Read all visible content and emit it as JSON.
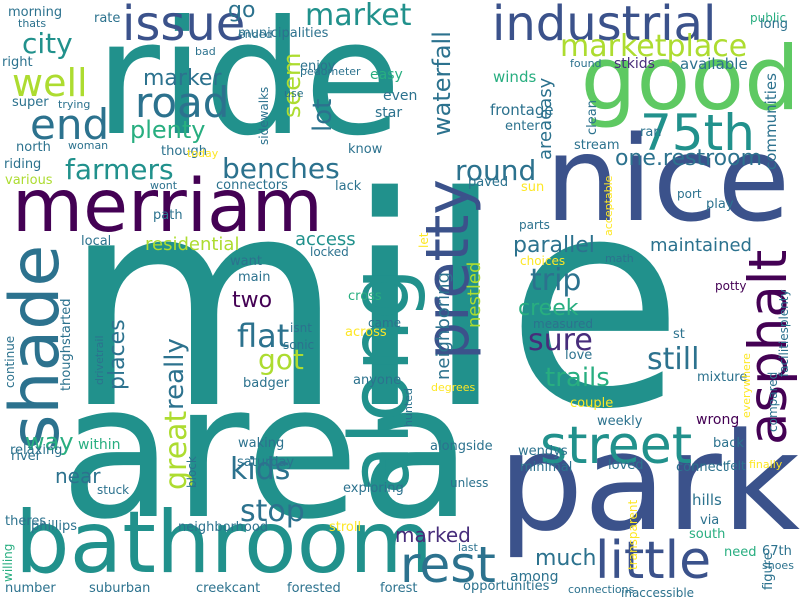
{
  "palette": {
    "dark_purple": "#440154",
    "indigo": "#472d7b",
    "slate_blue": "#3b528b",
    "steel_blue": "#2c728e",
    "teal": "#21918c",
    "sea_green": "#28ae80",
    "green": "#5ec962",
    "yellow_green": "#addc30",
    "yellow": "#fde725"
  },
  "words": [
    {
      "text": "ride",
      "color": "#21918c"
    },
    {
      "text": "mile",
      "color": "#21918c"
    },
    {
      "text": "area",
      "color": "#21918c"
    },
    {
      "text": "nice",
      "color": "#3b528b"
    },
    {
      "text": "park",
      "color": "#3b528b"
    },
    {
      "text": "good",
      "color": "#5ec962"
    },
    {
      "text": "bathroom",
      "color": "#21918c"
    },
    {
      "text": "merriam",
      "color": "#440154"
    },
    {
      "text": "shade",
      "color": "#2c728e"
    },
    {
      "text": "along",
      "color": "#21918c"
    },
    {
      "text": "industrial",
      "color": "#3b528b"
    },
    {
      "text": "issue",
      "color": "#3b528b"
    },
    {
      "text": "asphalt",
      "color": "#440154"
    },
    {
      "text": "pretty",
      "color": "#3b528b"
    },
    {
      "text": "street",
      "color": "#21918c"
    },
    {
      "text": "little",
      "color": "#3b528b"
    },
    {
      "text": "rest",
      "color": "#2c728e"
    },
    {
      "text": "75th",
      "color": "#21918c"
    },
    {
      "text": "road",
      "color": "#2c728e"
    },
    {
      "text": "end",
      "color": "#2c728e"
    },
    {
      "text": "well",
      "color": "#addc30"
    },
    {
      "text": "marketplace",
      "color": "#addc30"
    },
    {
      "text": "market",
      "color": "#21918c"
    },
    {
      "text": "city",
      "color": "#21918c"
    },
    {
      "text": "one.restroom",
      "color": "#2c728e"
    },
    {
      "text": "farmers",
      "color": "#21918c"
    },
    {
      "text": "round",
      "color": "#2c728e"
    },
    {
      "text": "benches",
      "color": "#2c728e"
    },
    {
      "text": "plenty",
      "color": "#28ae80"
    },
    {
      "text": "marker",
      "color": "#2c728e"
    },
    {
      "text": "flat",
      "color": "#2c728e"
    },
    {
      "text": "kids",
      "color": "#2c728e"
    },
    {
      "text": "stop",
      "color": "#2c728e"
    },
    {
      "text": "still",
      "color": "#2c728e"
    },
    {
      "text": "trip",
      "color": "#2c728e"
    },
    {
      "text": "sure",
      "color": "#472d7b"
    },
    {
      "text": "creek",
      "color": "#28ae80"
    },
    {
      "text": "trails",
      "color": "#28ae80"
    },
    {
      "text": "parallel",
      "color": "#2c728e"
    },
    {
      "text": "maintained",
      "color": "#2c728e"
    },
    {
      "text": "got",
      "color": "#addc30"
    },
    {
      "text": "really",
      "color": "#2c728e"
    },
    {
      "text": "great",
      "color": "#addc30"
    },
    {
      "text": "places",
      "color": "#2c728e"
    },
    {
      "text": "two",
      "color": "#440154"
    },
    {
      "text": "way",
      "color": "#28ae80"
    },
    {
      "text": "lot",
      "color": "#2c728e"
    },
    {
      "text": "seem",
      "color": "#addc30"
    },
    {
      "text": "waterfall",
      "color": "#2c728e"
    },
    {
      "text": "go",
      "color": "#2c728e"
    },
    {
      "text": "much",
      "color": "#2c728e"
    },
    {
      "text": "marked",
      "color": "#472d7b"
    },
    {
      "text": "near",
      "color": "#2c728e"
    },
    {
      "text": "residential",
      "color": "#addc30"
    },
    {
      "text": "access",
      "color": "#21918c"
    },
    {
      "text": "neighboring",
      "color": "#2c728e"
    },
    {
      "text": "nestled",
      "color": "#addc30"
    },
    {
      "text": "areaeasy",
      "color": "#2c728e"
    },
    {
      "text": "frontage",
      "color": "#2c728e"
    },
    {
      "text": "winds",
      "color": "#28ae80"
    },
    {
      "text": "communities",
      "color": "#2c728e"
    },
    {
      "text": "available",
      "color": "#2c728e"
    },
    {
      "text": "stkids",
      "color": "#472d7b"
    },
    {
      "text": "enjoy",
      "color": "#2c728e"
    },
    {
      "text": "municipalities",
      "color": "#2c728e"
    },
    {
      "text": "easy",
      "color": "#28ae80"
    },
    {
      "text": "star",
      "color": "#2c728e"
    },
    {
      "text": "even",
      "color": "#2c728e"
    },
    {
      "text": "enter",
      "color": "#2c728e"
    },
    {
      "text": "clean",
      "color": "#2c728e"
    },
    {
      "text": "ran",
      "color": "#2c728e"
    },
    {
      "text": "stream",
      "color": "#2c728e"
    },
    {
      "text": "paved",
      "color": "#2c728e"
    },
    {
      "text": "sun",
      "color": "#fde725"
    },
    {
      "text": "lack",
      "color": "#2c728e"
    },
    {
      "text": "know",
      "color": "#2c728e"
    },
    {
      "text": "though",
      "color": "#2c728e"
    },
    {
      "text": "connectors",
      "color": "#2c728e"
    },
    {
      "text": "path",
      "color": "#2c728e"
    },
    {
      "text": "local",
      "color": "#2c728e"
    },
    {
      "text": "want",
      "color": "#2c728e"
    },
    {
      "text": "main",
      "color": "#2c728e"
    },
    {
      "text": "isnt",
      "color": "#2c728e"
    },
    {
      "text": "sonic",
      "color": "#2c728e"
    },
    {
      "text": "cross",
      "color": "#28ae80"
    },
    {
      "text": "across",
      "color": "#fde725"
    },
    {
      "text": "came",
      "color": "#2c728e"
    },
    {
      "text": "anyone",
      "color": "#2c728e"
    },
    {
      "text": "badger",
      "color": "#2c728e"
    },
    {
      "text": "waking",
      "color": "#2c728e"
    },
    {
      "text": "saturday",
      "color": "#2c728e"
    },
    {
      "text": "exploring",
      "color": "#2c728e"
    },
    {
      "text": "alongside",
      "color": "#2c728e"
    },
    {
      "text": "wendys",
      "color": "#2c728e"
    },
    {
      "text": "minimal",
      "color": "#2c728e"
    },
    {
      "text": "weekly",
      "color": "#2c728e"
    },
    {
      "text": "loved",
      "color": "#2c728e"
    },
    {
      "text": "connect",
      "color": "#2c728e"
    },
    {
      "text": "back",
      "color": "#2c728e"
    },
    {
      "text": "wrong",
      "color": "#440154"
    },
    {
      "text": "couple",
      "color": "#fde725"
    },
    {
      "text": "mixture",
      "color": "#2c728e"
    },
    {
      "text": "love",
      "color": "#2c728e"
    },
    {
      "text": "measured",
      "color": "#2c728e"
    },
    {
      "text": "st",
      "color": "#2c728e"
    },
    {
      "text": "play",
      "color": "#2c728e"
    },
    {
      "text": "port",
      "color": "#2c728e"
    },
    {
      "text": "potty",
      "color": "#440154"
    },
    {
      "text": "math",
      "color": "#2c728e"
    },
    {
      "text": "choices",
      "color": "#fde725"
    },
    {
      "text": "parts",
      "color": "#2c728e"
    },
    {
      "text": "locked",
      "color": "#2c728e"
    },
    {
      "text": "let",
      "color": "#fde725"
    },
    {
      "text": "acceptable",
      "color": "#fde725"
    },
    {
      "text": "figure",
      "color": "#2c728e"
    },
    {
      "text": "public",
      "color": "#28ae80"
    },
    {
      "text": "long",
      "color": "#2c728e"
    },
    {
      "text": "found",
      "color": "#2c728e"
    },
    {
      "text": "facilitiesplenty",
      "color": "#2c728e"
    },
    {
      "text": "compared",
      "color": "#2c728e"
    },
    {
      "text": "everywhere",
      "color": "#fde725"
    },
    {
      "text": "felt",
      "color": "#2c728e"
    },
    {
      "text": "finally",
      "color": "#fde725"
    },
    {
      "text": "hills",
      "color": "#2c728e"
    },
    {
      "text": "via",
      "color": "#2c728e"
    },
    {
      "text": "south",
      "color": "#28ae80"
    },
    {
      "text": "need",
      "color": "#28ae80"
    },
    {
      "text": "67th",
      "color": "#2c728e"
    },
    {
      "text": "shoes",
      "color": "#2c728e"
    },
    {
      "text": "inaccessible",
      "color": "#2c728e"
    },
    {
      "text": "connections",
      "color": "#2c728e"
    },
    {
      "text": "transparent",
      "color": "#fde725"
    },
    {
      "text": "forest",
      "color": "#2c728e"
    },
    {
      "text": "forested",
      "color": "#2c728e"
    },
    {
      "text": "opportunities",
      "color": "#2c728e"
    },
    {
      "text": "among",
      "color": "#2c728e"
    },
    {
      "text": "last",
      "color": "#2c728e"
    },
    {
      "text": "unless",
      "color": "#2c728e"
    },
    {
      "text": "stroll",
      "color": "#fde725"
    },
    {
      "text": "neighborhood",
      "color": "#2c728e"
    },
    {
      "text": "creekcant",
      "color": "#2c728e"
    },
    {
      "text": "suburban",
      "color": "#2c728e"
    },
    {
      "text": "number",
      "color": "#2c728e"
    },
    {
      "text": "willing",
      "color": "#28ae80"
    },
    {
      "text": "phillips",
      "color": "#2c728e"
    },
    {
      "text": "theres",
      "color": "#2c728e"
    },
    {
      "text": "river",
      "color": "#2c728e"
    },
    {
      "text": "stuck",
      "color": "#2c728e"
    },
    {
      "text": "block",
      "color": "#2c728e"
    },
    {
      "text": "within",
      "color": "#28ae80"
    },
    {
      "text": "relaxing",
      "color": "#2c728e"
    },
    {
      "text": "hunted",
      "color": "#2c728e"
    },
    {
      "text": "degrees",
      "color": "#fde725"
    },
    {
      "text": "thoughstarted",
      "color": "#2c728e"
    },
    {
      "text": "continue",
      "color": "#2c728e"
    },
    {
      "text": "drivetrail",
      "color": "#2c728e"
    },
    {
      "text": "various",
      "color": "#addc30"
    },
    {
      "text": "riding",
      "color": "#2c728e"
    },
    {
      "text": "north",
      "color": "#2c728e"
    },
    {
      "text": "woman",
      "color": "#2c728e"
    },
    {
      "text": "today",
      "color": "#fde725"
    },
    {
      "text": "wont",
      "color": "#2c728e"
    },
    {
      "text": "super",
      "color": "#2c728e"
    },
    {
      "text": "trying",
      "color": "#2c728e"
    },
    {
      "text": "right",
      "color": "#2c728e"
    },
    {
      "text": "morning",
      "color": "#2c728e"
    },
    {
      "text": "thats",
      "color": "#2c728e"
    },
    {
      "text": "rate",
      "color": "#2c728e"
    },
    {
      "text": "bad",
      "color": "#2c728e"
    },
    {
      "text": "ended",
      "color": "#2c728e"
    },
    {
      "text": "pedometer",
      "color": "#2c728e"
    },
    {
      "text": "use",
      "color": "#2c728e"
    },
    {
      "text": "sidewalks",
      "color": "#2c728e"
    }
  ]
}
